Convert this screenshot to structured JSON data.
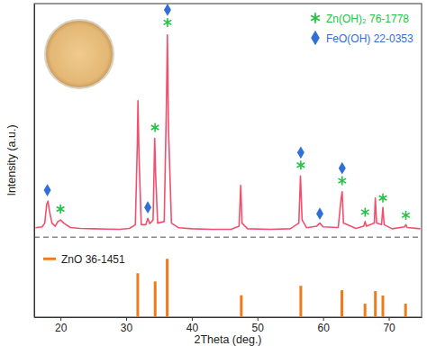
{
  "chart_data": {
    "type": "line",
    "x_label": "2Theta (deg.)",
    "y_label": "Intensity (a.u.)",
    "xlim": [
      16,
      75
    ],
    "xticks": [
      20,
      30,
      40,
      50,
      60,
      70
    ],
    "ylim": [
      0,
      100
    ],
    "tick_labels": "x",
    "grid": false,
    "legend": "upper right",
    "series": [
      {
        "type": "line",
        "color": "#f0506e",
        "x": [
          16.2,
          17.2,
          17.6,
          17.9,
          18.1,
          18.3,
          18.7,
          19.2,
          19.6,
          20.0,
          20.5,
          21.5,
          23,
          25,
          27,
          29,
          30.5,
          31.4,
          31.7,
          31.8,
          31.95,
          32.3,
          33.0,
          33.3,
          33.6,
          34.1,
          34.35,
          34.5,
          34.8,
          35.8,
          36.15,
          36.28,
          36.45,
          36.9,
          38,
          40,
          43,
          46,
          47.2,
          47.45,
          47.65,
          48.5,
          52,
          55,
          56.3,
          56.55,
          56.8,
          57.5,
          59.0,
          59.5,
          60.0,
          62.3,
          62.75,
          62.9,
          63.1,
          65,
          66.2,
          66.4,
          66.6,
          67.8,
          67.95,
          68.15,
          68.9,
          69.1,
          69.3,
          70.5,
          72.4,
          72.6,
          72.8,
          74.8
        ],
        "values": [
          28.5,
          28.8,
          30,
          36,
          37,
          34,
          30,
          29,
          30.5,
          31,
          30,
          28.6,
          28.3,
          28.2,
          28.1,
          28.0,
          28.3,
          29.5,
          55,
          69,
          52,
          29.5,
          29.5,
          31.5,
          29.8,
          31,
          57,
          45,
          30,
          30.5,
          70,
          90,
          60,
          30,
          28.5,
          28.2,
          28.0,
          28.0,
          29,
          42,
          30,
          28.2,
          28,
          28.2,
          30,
          45,
          31,
          28.5,
          29,
          30,
          28.8,
          28.6,
          38,
          40,
          30,
          28.3,
          29,
          30.5,
          29,
          30,
          38,
          30,
          29.5,
          35,
          29.5,
          28.2,
          28.8,
          29.5,
          28.6,
          28.2
        ]
      },
      {
        "name": "Zn(OH)₂ 76-1778",
        "type": "scatter",
        "marker": "asterisk",
        "color": "#22c444",
        "x": [
          20.0,
          34.4,
          36.3,
          56.6,
          62.9,
          66.4,
          69.1,
          72.6
        ],
        "values": [
          34.5,
          60.5,
          94,
          48.5,
          43.5,
          33.5,
          38,
          32.5
        ]
      },
      {
        "name": "FeO(OH) 22-0353",
        "type": "scatter",
        "marker": "diamond",
        "color": "#2f6fd6",
        "x": [
          18.0,
          33.3,
          36.3,
          56.6,
          59.5,
          62.9
        ],
        "values": [
          40.5,
          35,
          98,
          52.5,
          33,
          47.5
        ]
      },
      {
        "name": "ZnO 36-1451",
        "type": "stem",
        "color": "#f07b1a",
        "x": [
          31.77,
          34.42,
          36.25,
          47.54,
          56.6,
          62.86,
          66.38,
          67.96,
          69.1,
          72.56
        ],
        "values": [
          14,
          11.4,
          18.6,
          7,
          10,
          8.6,
          4.3,
          8.3,
          6.9,
          4.3
        ]
      }
    ]
  }
}
